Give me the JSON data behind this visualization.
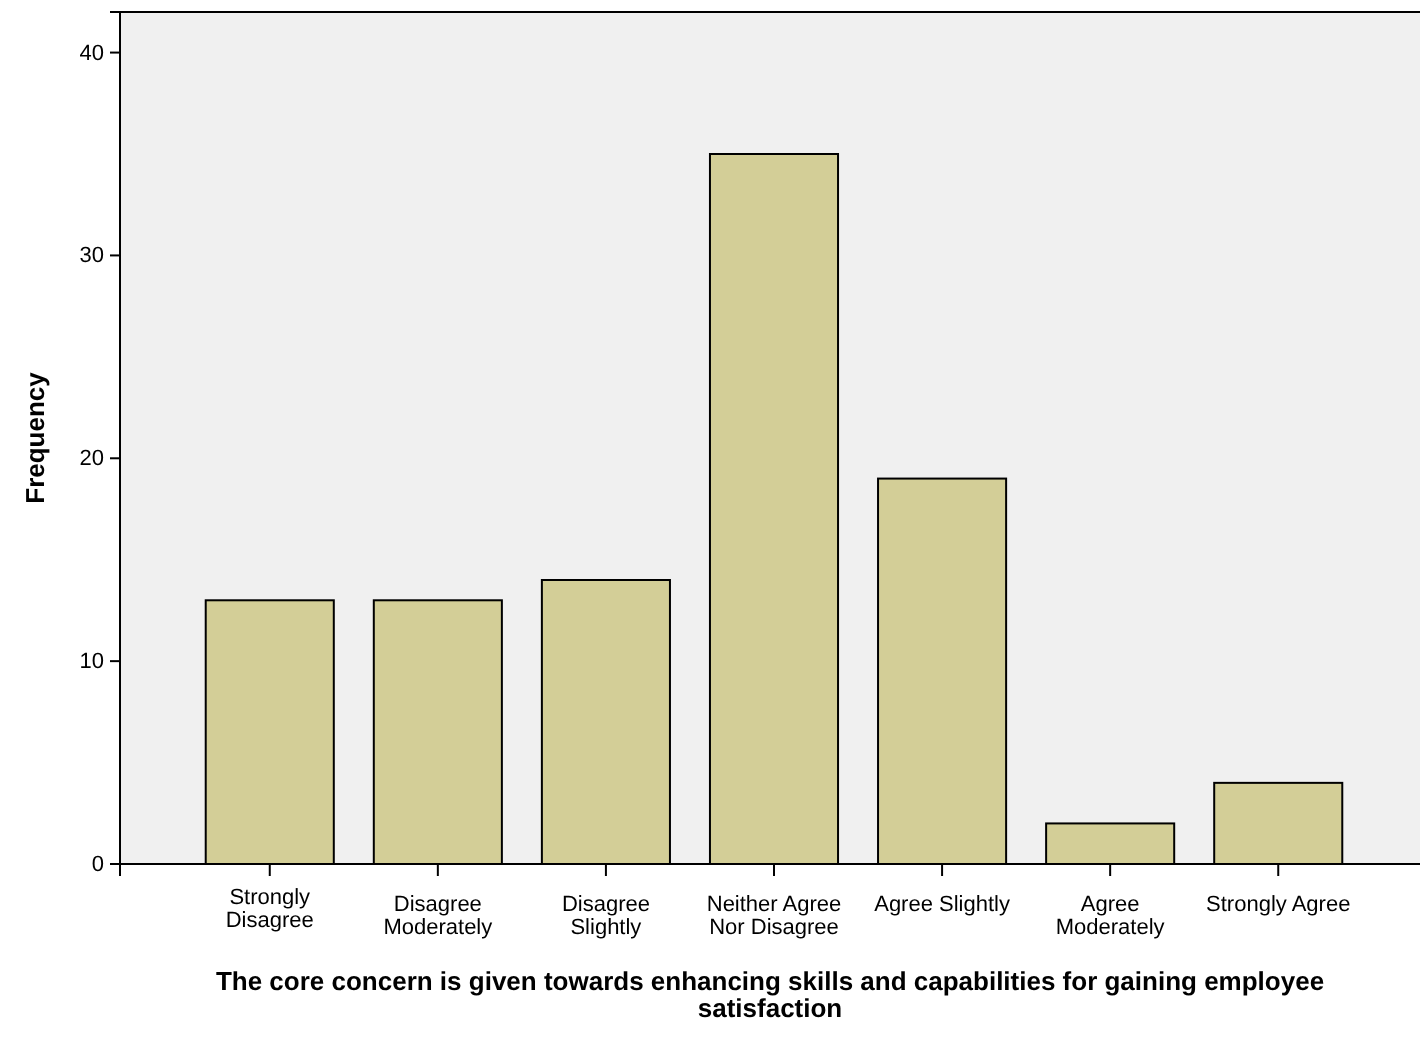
{
  "chart_data": {
    "type": "bar",
    "xlabel": "The core concern is given towards enhancing skills and capabilities for gaining employee satisfaction",
    "ylabel": "Frequency",
    "categories": [
      "Strongly Disagree",
      "Disagree Moderately",
      "Disagree Slightly",
      "Neither Agree Nor Disagree",
      "Agree Slightly",
      "Agree Moderately",
      "Strongly Agree"
    ],
    "values": [
      13,
      13,
      14,
      35,
      19,
      2,
      4
    ],
    "color": "#d3ce97",
    "ylim": [
      0,
      42
    ],
    "yticks": [
      0,
      10,
      20,
      30,
      40
    ],
    "grid": false
  }
}
